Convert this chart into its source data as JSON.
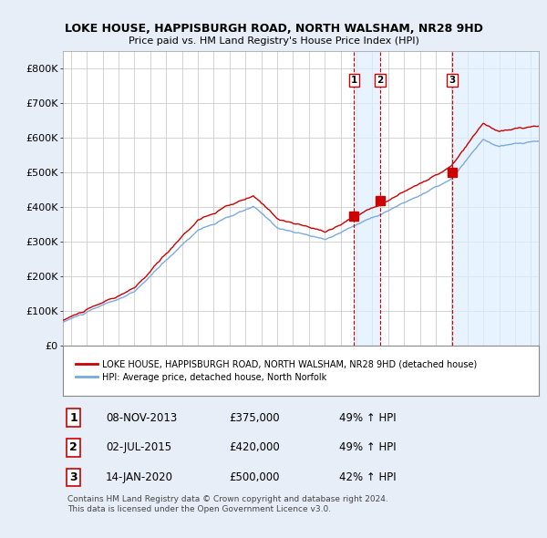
{
  "title1": "LOKE HOUSE, HAPPISBURGH ROAD, NORTH WALSHAM, NR28 9HD",
  "title2": "Price paid vs. HM Land Registry's House Price Index (HPI)",
  "ylabel_ticks": [
    "£0",
    "£100K",
    "£200K",
    "£300K",
    "£400K",
    "£500K",
    "£600K",
    "£700K",
    "£800K"
  ],
  "ytick_values": [
    0,
    100000,
    200000,
    300000,
    400000,
    500000,
    600000,
    700000,
    800000
  ],
  "ylim": [
    0,
    850000
  ],
  "xlim_start": 1995.5,
  "xlim_end": 2025.5,
  "sale_dates": [
    2013.85,
    2015.5,
    2020.04
  ],
  "sale_prices": [
    375000,
    420000,
    500000
  ],
  "sale_labels": [
    "1",
    "2",
    "3"
  ],
  "legend_line1": "LOKE HOUSE, HAPPISBURGH ROAD, NORTH WALSHAM, NR28 9HD (detached house)",
  "legend_line2": "HPI: Average price, detached house, North Norfolk",
  "table_data": [
    [
      "1",
      "08-NOV-2013",
      "£375,000",
      "49% ↑ HPI"
    ],
    [
      "2",
      "02-JUL-2015",
      "£420,000",
      "49% ↑ HPI"
    ],
    [
      "3",
      "14-JAN-2020",
      "£500,000",
      "42% ↑ HPI"
    ]
  ],
  "footer": "Contains HM Land Registry data © Crown copyright and database right 2024.\nThis data is licensed under the Open Government Licence v3.0.",
  "red_color": "#cc0000",
  "blue_color": "#7aaadd",
  "bg_color": "#e8eef8",
  "plot_bg": "#ffffff",
  "grid_color": "#cccccc",
  "vline_color": "#cc0000",
  "shade_color": "#ddeeff"
}
